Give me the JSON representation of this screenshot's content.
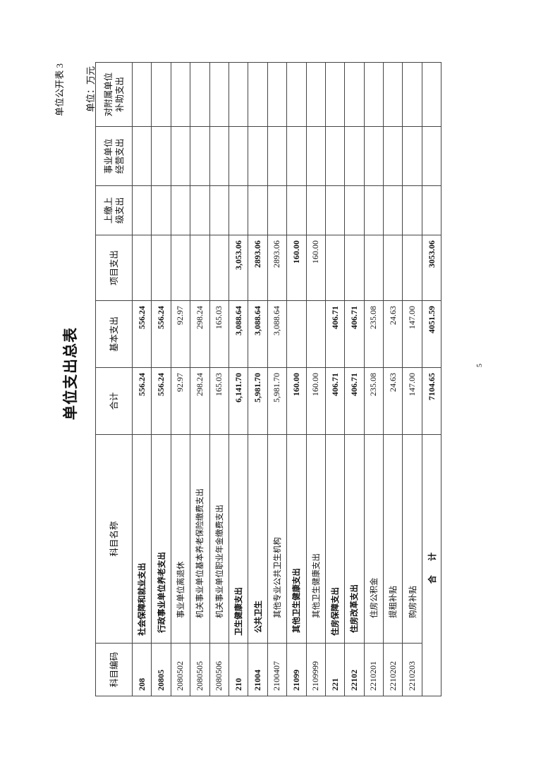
{
  "header": {
    "form_no": "单位公开表 3",
    "title": "单位支出总表",
    "unit": "单位：万元"
  },
  "columns": [
    "科目编码",
    "科目名称",
    "合计",
    "基本支出",
    "项目支出",
    "上缴上级支出",
    "事业单位经营支出",
    "对附属单位补助支出"
  ],
  "rows": [
    {
      "code": "208",
      "name": "社会保障和就业支出",
      "level": 1,
      "total": "556.24",
      "basic": "556.24",
      "project": "",
      "bold": true
    },
    {
      "code": "20805",
      "name": "行政事业单位养老支出",
      "level": 2,
      "total": "556.24",
      "basic": "556.24",
      "project": "",
      "bold": true
    },
    {
      "code": "2080502",
      "name": "事业单位离退休",
      "level": 3,
      "total": "92.97",
      "basic": "92.97",
      "project": "",
      "bold": false
    },
    {
      "code": "2080505",
      "name": "机关事业单位基本养老保险缴费支出",
      "level": 3,
      "total": "298.24",
      "basic": "298.24",
      "project": "",
      "bold": false
    },
    {
      "code": "2080506",
      "name": "机关事业单位职业年金缴费支出",
      "level": 3,
      "total": "165.03",
      "basic": "165.03",
      "project": "",
      "bold": false
    },
    {
      "code": "210",
      "name": "卫生健康支出",
      "level": 1,
      "total": "6,141.70",
      "basic": "3,088.64",
      "project": "3,053.06",
      "bold": true
    },
    {
      "code": "21004",
      "name": "公共卫生",
      "level": 2,
      "total": "5,981.70",
      "basic": "3,088.64",
      "project": "2893.06",
      "bold": true
    },
    {
      "code": "2100407",
      "name": "其他专业公共卫生机构",
      "level": 3,
      "total": "5,981.70",
      "basic": "3,088.64",
      "project": "2893.06",
      "bold": false
    },
    {
      "code": "21099",
      "name": "其他卫生健康支出",
      "level": 2,
      "total": "160.00",
      "basic": "",
      "project": "160.00",
      "bold": true
    },
    {
      "code": "2109999",
      "name": "其他卫生健康支出",
      "level": 3,
      "total": "160.00",
      "basic": "",
      "project": "160.00",
      "bold": false
    },
    {
      "code": "221",
      "name": "住房保障支出",
      "level": 1,
      "total": "406.71",
      "basic": "406.71",
      "project": "",
      "bold": true
    },
    {
      "code": "22102",
      "name": "住房改革支出",
      "level": 2,
      "total": "406.71",
      "basic": "406.71",
      "project": "",
      "bold": true
    },
    {
      "code": "2210201",
      "name": "住房公积金",
      "level": 3,
      "total": "235.08",
      "basic": "235.08",
      "project": "",
      "bold": false
    },
    {
      "code": "2210202",
      "name": "提租补贴",
      "level": 3,
      "total": "24.63",
      "basic": "24.63",
      "project": "",
      "bold": false
    },
    {
      "code": "2210203",
      "name": "购房补贴",
      "level": 3,
      "total": "147.00",
      "basic": "147.00",
      "project": "",
      "bold": false
    }
  ],
  "total_row": {
    "label": "合 计",
    "total": "7104.65",
    "basic": "4051.59",
    "project": "3053.06"
  },
  "footer": {
    "page": "5"
  }
}
